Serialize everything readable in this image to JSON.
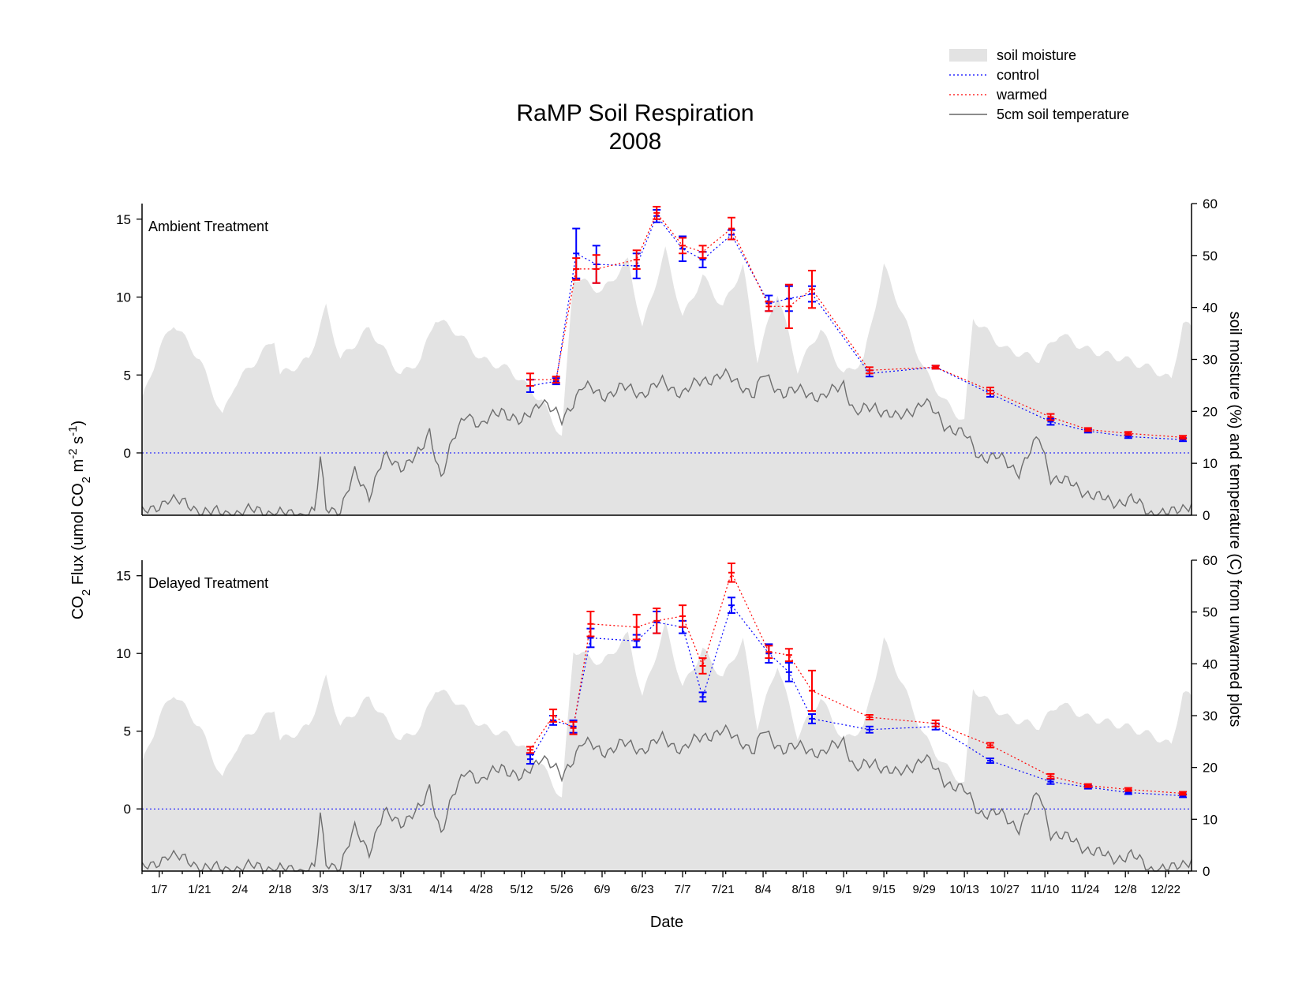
{
  "chart_data": {
    "type": "line",
    "title": "RaMP Soil Respiration",
    "subtitle": "2008",
    "xlabel": "Date",
    "ylabel_left": "CO2 Flux (umol CO2 m-2 s-1)",
    "ylabel_right": "soil moisture (%) and temperature (C) from unwarmed plots",
    "ylim_left": [
      -4,
      16
    ],
    "ylim_right": [
      0,
      60
    ],
    "yticks_left": [
      0,
      5,
      10,
      15
    ],
    "yticks_right": [
      0,
      10,
      20,
      30,
      40,
      50,
      60
    ],
    "x_tick_labels": [
      "1/7",
      "1/21",
      "2/4",
      "2/18",
      "3/3",
      "3/17",
      "3/31",
      "4/14",
      "4/28",
      "5/12",
      "5/26",
      "6/9",
      "6/23",
      "7/7",
      "7/21",
      "8/4",
      "8/18",
      "9/1",
      "9/15",
      "9/29",
      "10/13",
      "10/27",
      "11/10",
      "11/24",
      "12/8",
      "12/22"
    ],
    "legend": {
      "position": "top-right",
      "entries": [
        {
          "label": "soil moisture",
          "style": "area",
          "color": "#e3e3e3"
        },
        {
          "label": "control",
          "style": "dotted",
          "color": "#0000ff"
        },
        {
          "label": "warmed",
          "style": "dotted",
          "color": "#ff0000"
        },
        {
          "label": "5cm soil temperature",
          "style": "solid",
          "color": "#666666"
        }
      ]
    },
    "colors": {
      "control": "#0000ff",
      "warmed": "#ff0000",
      "temperature": "#6e6e6e",
      "moisture": "#e3e3e3"
    },
    "panels": [
      {
        "label": "Ambient Treatment",
        "series": [
          {
            "name": "control",
            "points": [
              {
                "date": "5/15",
                "y": 4.3,
                "err": 0.4
              },
              {
                "date": "5/24",
                "y": 4.6,
                "err": 0.2
              },
              {
                "date": "5/31",
                "y": 12.8,
                "err": 1.6
              },
              {
                "date": "6/7",
                "y": 12.1,
                "err": 1.2
              },
              {
                "date": "6/21",
                "y": 12.0,
                "err": 0.8
              },
              {
                "date": "6/28",
                "y": 15.2,
                "err": 0.4
              },
              {
                "date": "7/7",
                "y": 13.1,
                "err": 0.8
              },
              {
                "date": "7/14",
                "y": 12.4,
                "err": 0.5
              },
              {
                "date": "7/24",
                "y": 14.0,
                "err": 0.3
              },
              {
                "date": "8/6",
                "y": 9.6,
                "err": 0.5
              },
              {
                "date": "8/13",
                "y": 9.9,
                "err": 0.8
              },
              {
                "date": "8/21",
                "y": 10.2,
                "err": 0.5
              },
              {
                "date": "9/10",
                "y": 5.1,
                "err": 0.2
              },
              {
                "date": "10/3",
                "y": 5.5,
                "err": 0.1
              },
              {
                "date": "10/22",
                "y": 3.8,
                "err": 0.2
              },
              {
                "date": "11/12",
                "y": 2.0,
                "err": 0.2
              },
              {
                "date": "11/25",
                "y": 1.4,
                "err": 0.1
              },
              {
                "date": "12/9",
                "y": 1.05,
                "err": 0.1
              },
              {
                "date": "12/28",
                "y": 0.85,
                "err": 0.1
              }
            ]
          },
          {
            "name": "warmed",
            "points": [
              {
                "date": "5/15",
                "y": 4.7,
                "err": 0.4
              },
              {
                "date": "5/24",
                "y": 4.7,
                "err": 0.2
              },
              {
                "date": "5/31",
                "y": 11.8,
                "err": 0.7
              },
              {
                "date": "6/7",
                "y": 11.8,
                "err": 0.9
              },
              {
                "date": "6/21",
                "y": 12.4,
                "err": 0.6
              },
              {
                "date": "6/28",
                "y": 15.4,
                "err": 0.4
              },
              {
                "date": "7/7",
                "y": 13.3,
                "err": 0.5
              },
              {
                "date": "7/14",
                "y": 12.9,
                "err": 0.4
              },
              {
                "date": "7/24",
                "y": 14.4,
                "err": 0.7
              },
              {
                "date": "8/6",
                "y": 9.4,
                "err": 0.3
              },
              {
                "date": "8/13",
                "y": 9.4,
                "err": 1.4
              },
              {
                "date": "8/21",
                "y": 10.5,
                "err": 1.2
              },
              {
                "date": "9/10",
                "y": 5.3,
                "err": 0.2
              },
              {
                "date": "10/3",
                "y": 5.5,
                "err": 0.1
              },
              {
                "date": "10/22",
                "y": 4.0,
                "err": 0.2
              },
              {
                "date": "11/12",
                "y": 2.3,
                "err": 0.2
              },
              {
                "date": "11/25",
                "y": 1.5,
                "err": 0.1
              },
              {
                "date": "12/9",
                "y": 1.25,
                "err": 0.1
              },
              {
                "date": "12/28",
                "y": 1.0,
                "err": 0.1
              }
            ]
          }
        ]
      },
      {
        "label": "Delayed Treatment",
        "series": [
          {
            "name": "control",
            "points": [
              {
                "date": "5/15",
                "y": 3.2,
                "err": 0.3
              },
              {
                "date": "5/23",
                "y": 5.7,
                "err": 0.3
              },
              {
                "date": "5/30",
                "y": 5.3,
                "err": 0.4
              },
              {
                "date": "6/5",
                "y": 11.0,
                "err": 0.6
              },
              {
                "date": "6/21",
                "y": 10.8,
                "err": 0.4
              },
              {
                "date": "6/28",
                "y": 12.0,
                "err": 0.7
              },
              {
                "date": "7/7",
                "y": 11.7,
                "err": 0.4
              },
              {
                "date": "7/14",
                "y": 7.2,
                "err": 0.3
              },
              {
                "date": "7/24",
                "y": 13.1,
                "err": 0.5
              },
              {
                "date": "8/6",
                "y": 10.0,
                "err": 0.6
              },
              {
                "date": "8/13",
                "y": 8.8,
                "err": 0.6
              },
              {
                "date": "8/21",
                "y": 5.8,
                "err": 0.3
              },
              {
                "date": "9/10",
                "y": 5.1,
                "err": 0.2
              },
              {
                "date": "10/3",
                "y": 5.3,
                "err": 0.2
              },
              {
                "date": "10/22",
                "y": 3.1,
                "err": 0.15
              },
              {
                "date": "11/12",
                "y": 1.75,
                "err": 0.15
              },
              {
                "date": "11/25",
                "y": 1.4,
                "err": 0.1
              },
              {
                "date": "12/9",
                "y": 1.05,
                "err": 0.1
              },
              {
                "date": "12/28",
                "y": 0.85,
                "err": 0.1
              }
            ]
          },
          {
            "name": "warmed",
            "points": [
              {
                "date": "5/15",
                "y": 3.8,
                "err": 0.2
              },
              {
                "date": "5/23",
                "y": 6.0,
                "err": 0.4
              },
              {
                "date": "5/30",
                "y": 5.2,
                "err": 0.4
              },
              {
                "date": "6/5",
                "y": 11.9,
                "err": 0.8
              },
              {
                "date": "6/21",
                "y": 11.7,
                "err": 0.8
              },
              {
                "date": "6/28",
                "y": 12.1,
                "err": 0.8
              },
              {
                "date": "7/7",
                "y": 12.4,
                "err": 0.7
              },
              {
                "date": "7/14",
                "y": 9.2,
                "err": 0.5
              },
              {
                "date": "7/24",
                "y": 15.2,
                "err": 0.6
              },
              {
                "date": "8/6",
                "y": 10.1,
                "err": 0.4
              },
              {
                "date": "8/13",
                "y": 9.9,
                "err": 0.4
              },
              {
                "date": "8/21",
                "y": 7.6,
                "err": 1.3
              },
              {
                "date": "9/10",
                "y": 5.9,
                "err": 0.15
              },
              {
                "date": "10/3",
                "y": 5.5,
                "err": 0.2
              },
              {
                "date": "10/22",
                "y": 4.1,
                "err": 0.15
              },
              {
                "date": "11/12",
                "y": 2.1,
                "err": 0.15
              },
              {
                "date": "11/25",
                "y": 1.5,
                "err": 0.1
              },
              {
                "date": "12/9",
                "y": 1.25,
                "err": 0.1
              },
              {
                "date": "12/28",
                "y": 1.0,
                "err": 0.1
              }
            ]
          }
        ]
      }
    ],
    "soil_moisture_percent": [
      {
        "date": "1/1",
        "y": 22
      },
      {
        "date": "1/7",
        "y": 32
      },
      {
        "date": "1/12",
        "y": 37
      },
      {
        "date": "1/21",
        "y": 30
      },
      {
        "date": "1/29",
        "y": 19
      },
      {
        "date": "2/2",
        "y": 25
      },
      {
        "date": "2/10",
        "y": 30
      },
      {
        "date": "2/16",
        "y": 34
      },
      {
        "date": "2/18",
        "y": 27
      },
      {
        "date": "2/28",
        "y": 30
      },
      {
        "date": "3/5",
        "y": 40
      },
      {
        "date": "3/10",
        "y": 30
      },
      {
        "date": "3/20",
        "y": 36
      },
      {
        "date": "3/31",
        "y": 27
      },
      {
        "date": "4/7",
        "y": 30
      },
      {
        "date": "4/12",
        "y": 38
      },
      {
        "date": "4/20",
        "y": 35
      },
      {
        "date": "4/28",
        "y": 30
      },
      {
        "date": "5/8",
        "y": 28
      },
      {
        "date": "5/19",
        "y": 22
      },
      {
        "date": "5/26",
        "y": 15
      },
      {
        "date": "5/30",
        "y": 46
      },
      {
        "date": "6/9",
        "y": 43
      },
      {
        "date": "6/18",
        "y": 49
      },
      {
        "date": "6/23",
        "y": 36
      },
      {
        "date": "7/1",
        "y": 51
      },
      {
        "date": "7/7",
        "y": 38
      },
      {
        "date": "7/14",
        "y": 46
      },
      {
        "date": "7/21",
        "y": 40
      },
      {
        "date": "7/28",
        "y": 48
      },
      {
        "date": "8/2",
        "y": 30
      },
      {
        "date": "8/9",
        "y": 43
      },
      {
        "date": "8/16",
        "y": 28
      },
      {
        "date": "8/24",
        "y": 36
      },
      {
        "date": "9/1",
        "y": 27
      },
      {
        "date": "9/8",
        "y": 30
      },
      {
        "date": "9/15",
        "y": 48
      },
      {
        "date": "9/22",
        "y": 38
      },
      {
        "date": "9/29",
        "y": 28
      },
      {
        "date": "10/6",
        "y": 22
      },
      {
        "date": "10/13",
        "y": 18
      },
      {
        "date": "10/16",
        "y": 38
      },
      {
        "date": "10/27",
        "y": 32
      },
      {
        "date": "11/8",
        "y": 30
      },
      {
        "date": "11/15",
        "y": 35
      },
      {
        "date": "11/24",
        "y": 32
      },
      {
        "date": "12/8",
        "y": 30
      },
      {
        "date": "12/18",
        "y": 28
      },
      {
        "date": "12/24",
        "y": 26
      },
      {
        "date": "12/28",
        "y": 37
      },
      {
        "date": "12/31",
        "y": 36
      }
    ],
    "soil_temperature_5cm_C": [
      {
        "date": "1/1",
        "y": 0.5
      },
      {
        "date": "1/5",
        "y": 0.8
      },
      {
        "date": "1/10",
        "y": 3.5
      },
      {
        "date": "1/16",
        "y": 2.0
      },
      {
        "date": "1/21",
        "y": 1.0
      },
      {
        "date": "1/28",
        "y": 0.3
      },
      {
        "date": "2/4",
        "y": 0.5
      },
      {
        "date": "2/10",
        "y": 1.0
      },
      {
        "date": "2/18",
        "y": 0.2
      },
      {
        "date": "2/25",
        "y": 0.2
      },
      {
        "date": "3/1",
        "y": 0.5
      },
      {
        "date": "3/3",
        "y": 10.5
      },
      {
        "date": "3/5",
        "y": 1.5
      },
      {
        "date": "3/10",
        "y": 1.0
      },
      {
        "date": "3/15",
        "y": 8.0
      },
      {
        "date": "3/20",
        "y": 4.0
      },
      {
        "date": "3/25",
        "y": 11.0
      },
      {
        "date": "3/31",
        "y": 9.5
      },
      {
        "date": "4/7",
        "y": 12.0
      },
      {
        "date": "4/10",
        "y": 16.0
      },
      {
        "date": "4/14",
        "y": 7.5
      },
      {
        "date": "4/18",
        "y": 14.0
      },
      {
        "date": "4/23",
        "y": 20.0
      },
      {
        "date": "4/28",
        "y": 17.0
      },
      {
        "date": "5/5",
        "y": 20.5
      },
      {
        "date": "5/12",
        "y": 17.5
      },
      {
        "date": "5/19",
        "y": 22.5
      },
      {
        "date": "5/26",
        "y": 18.0
      },
      {
        "date": "6/2",
        "y": 25.0
      },
      {
        "date": "6/9",
        "y": 23.0
      },
      {
        "date": "6/16",
        "y": 24.5
      },
      {
        "date": "6/23",
        "y": 23.5
      },
      {
        "date": "6/30",
        "y": 25.5
      },
      {
        "date": "7/7",
        "y": 23.5
      },
      {
        "date": "7/14",
        "y": 26.0
      },
      {
        "date": "7/21",
        "y": 27.0
      },
      {
        "date": "7/28",
        "y": 25.0
      },
      {
        "date": "8/1",
        "y": 23.0
      },
      {
        "date": "8/4",
        "y": 27.0
      },
      {
        "date": "8/11",
        "y": 23.5
      },
      {
        "date": "8/18",
        "y": 24.0
      },
      {
        "date": "8/25",
        "y": 22.5
      },
      {
        "date": "9/1",
        "y": 25.5
      },
      {
        "date": "9/5",
        "y": 19.5
      },
      {
        "date": "9/12",
        "y": 21.0
      },
      {
        "date": "9/20",
        "y": 18.5
      },
      {
        "date": "9/29",
        "y": 22.0
      },
      {
        "date": "10/6",
        "y": 17.5
      },
      {
        "date": "10/13",
        "y": 15.5
      },
      {
        "date": "10/18",
        "y": 11.5
      },
      {
        "date": "10/25",
        "y": 11.0
      },
      {
        "date": "11/1",
        "y": 8.5
      },
      {
        "date": "11/8",
        "y": 15.0
      },
      {
        "date": "11/12",
        "y": 7.5
      },
      {
        "date": "11/19",
        "y": 6.0
      },
      {
        "date": "11/26",
        "y": 4.0
      },
      {
        "date": "12/3",
        "y": 2.5
      },
      {
        "date": "12/10",
        "y": 3.0
      },
      {
        "date": "12/17",
        "y": 0.5
      },
      {
        "date": "12/24",
        "y": 0.3
      },
      {
        "date": "12/31",
        "y": 2.5
      }
    ]
  }
}
